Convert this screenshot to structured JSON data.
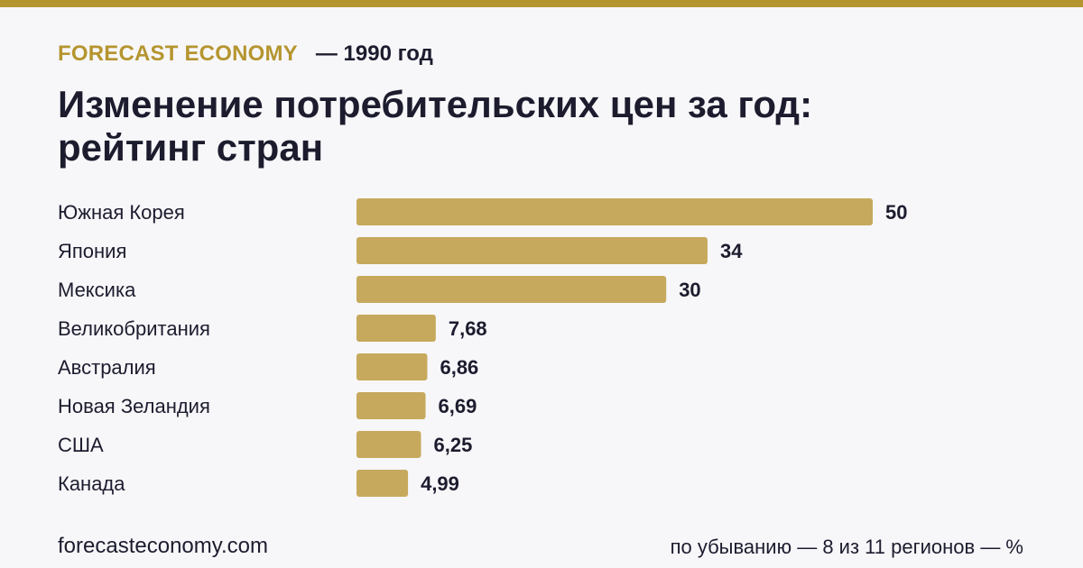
{
  "header": {
    "brand": "FORECAST ECONOMY",
    "year": "— 1990 год",
    "title_line1": "Изменение потребительских цен за год:",
    "title_line2": "рейтинг стран"
  },
  "footer": {
    "site": "forecasteconomy.com",
    "note": "по убыванию — 8 из 11 регионов — %"
  },
  "colors": {
    "accent": "#b5952f",
    "bar": "#c6a95c",
    "text": "#1c1c2e",
    "background": "#f7f7fa"
  },
  "chart_data": {
    "type": "bar",
    "orientation": "horizontal",
    "categories": [
      "Южная Корея",
      "Япония",
      "Мексика",
      "Великобритания",
      "Австралия",
      "Новая Зеландия",
      "США",
      "Канада"
    ],
    "values": [
      50,
      34,
      30,
      7.68,
      6.86,
      6.69,
      6.25,
      4.99
    ],
    "value_labels": [
      "50",
      "34",
      "30",
      "7,68",
      "6,86",
      "6,69",
      "6,25",
      "4,99"
    ],
    "xlim": [
      0,
      50
    ],
    "grid": false,
    "legend": "none"
  }
}
